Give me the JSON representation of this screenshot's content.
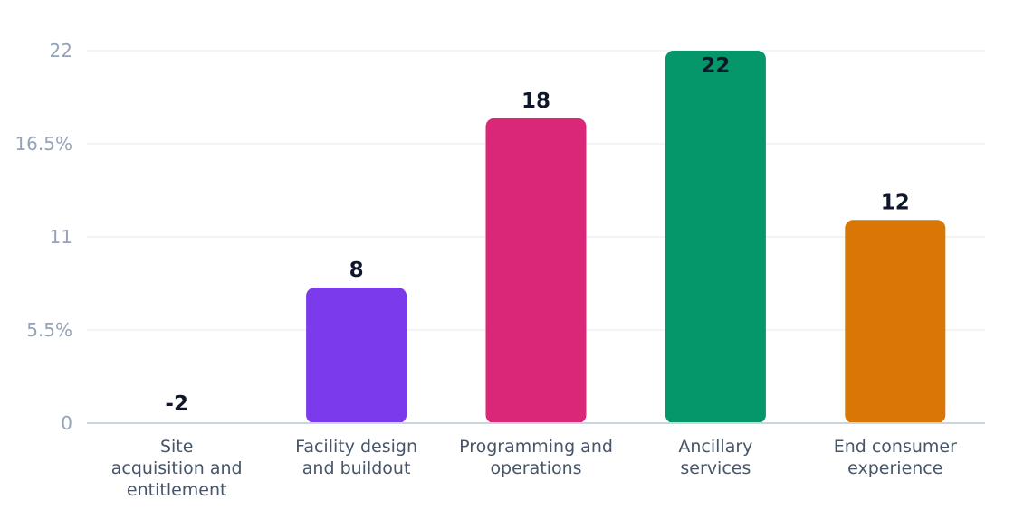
{
  "chart_data": {
    "type": "bar",
    "categories": [
      "Site acquisition and entitlement",
      "Facility design and buildout",
      "Programming and operations",
      "Ancillary services",
      "End consumer experience"
    ],
    "category_lines": [
      [
        "Site",
        "acquisition and",
        "entitlement"
      ],
      [
        "Facility design",
        "and buildout"
      ],
      [
        "Programming and",
        "operations"
      ],
      [
        "Ancillary",
        "services"
      ],
      [
        "End consumer",
        "experience"
      ]
    ],
    "values": [
      -2,
      8,
      18,
      22,
      12
    ],
    "data_labels": [
      "-2",
      "8",
      "18",
      "22",
      "12"
    ],
    "colors": [
      "#7c3aed",
      "#7c3aed",
      "#db2777",
      "#059669",
      "#d97706"
    ],
    "y_ticks": [
      {
        "value": 0,
        "label": "0"
      },
      {
        "value": 5.5,
        "label": "5.5%"
      },
      {
        "value": 11,
        "label": "11"
      },
      {
        "value": 16.5,
        "label": "16.5%"
      },
      {
        "value": 22,
        "label": "22"
      }
    ],
    "ylim": [
      0,
      22
    ],
    "grid": true,
    "title": "",
    "xlabel": "",
    "ylabel": ""
  }
}
